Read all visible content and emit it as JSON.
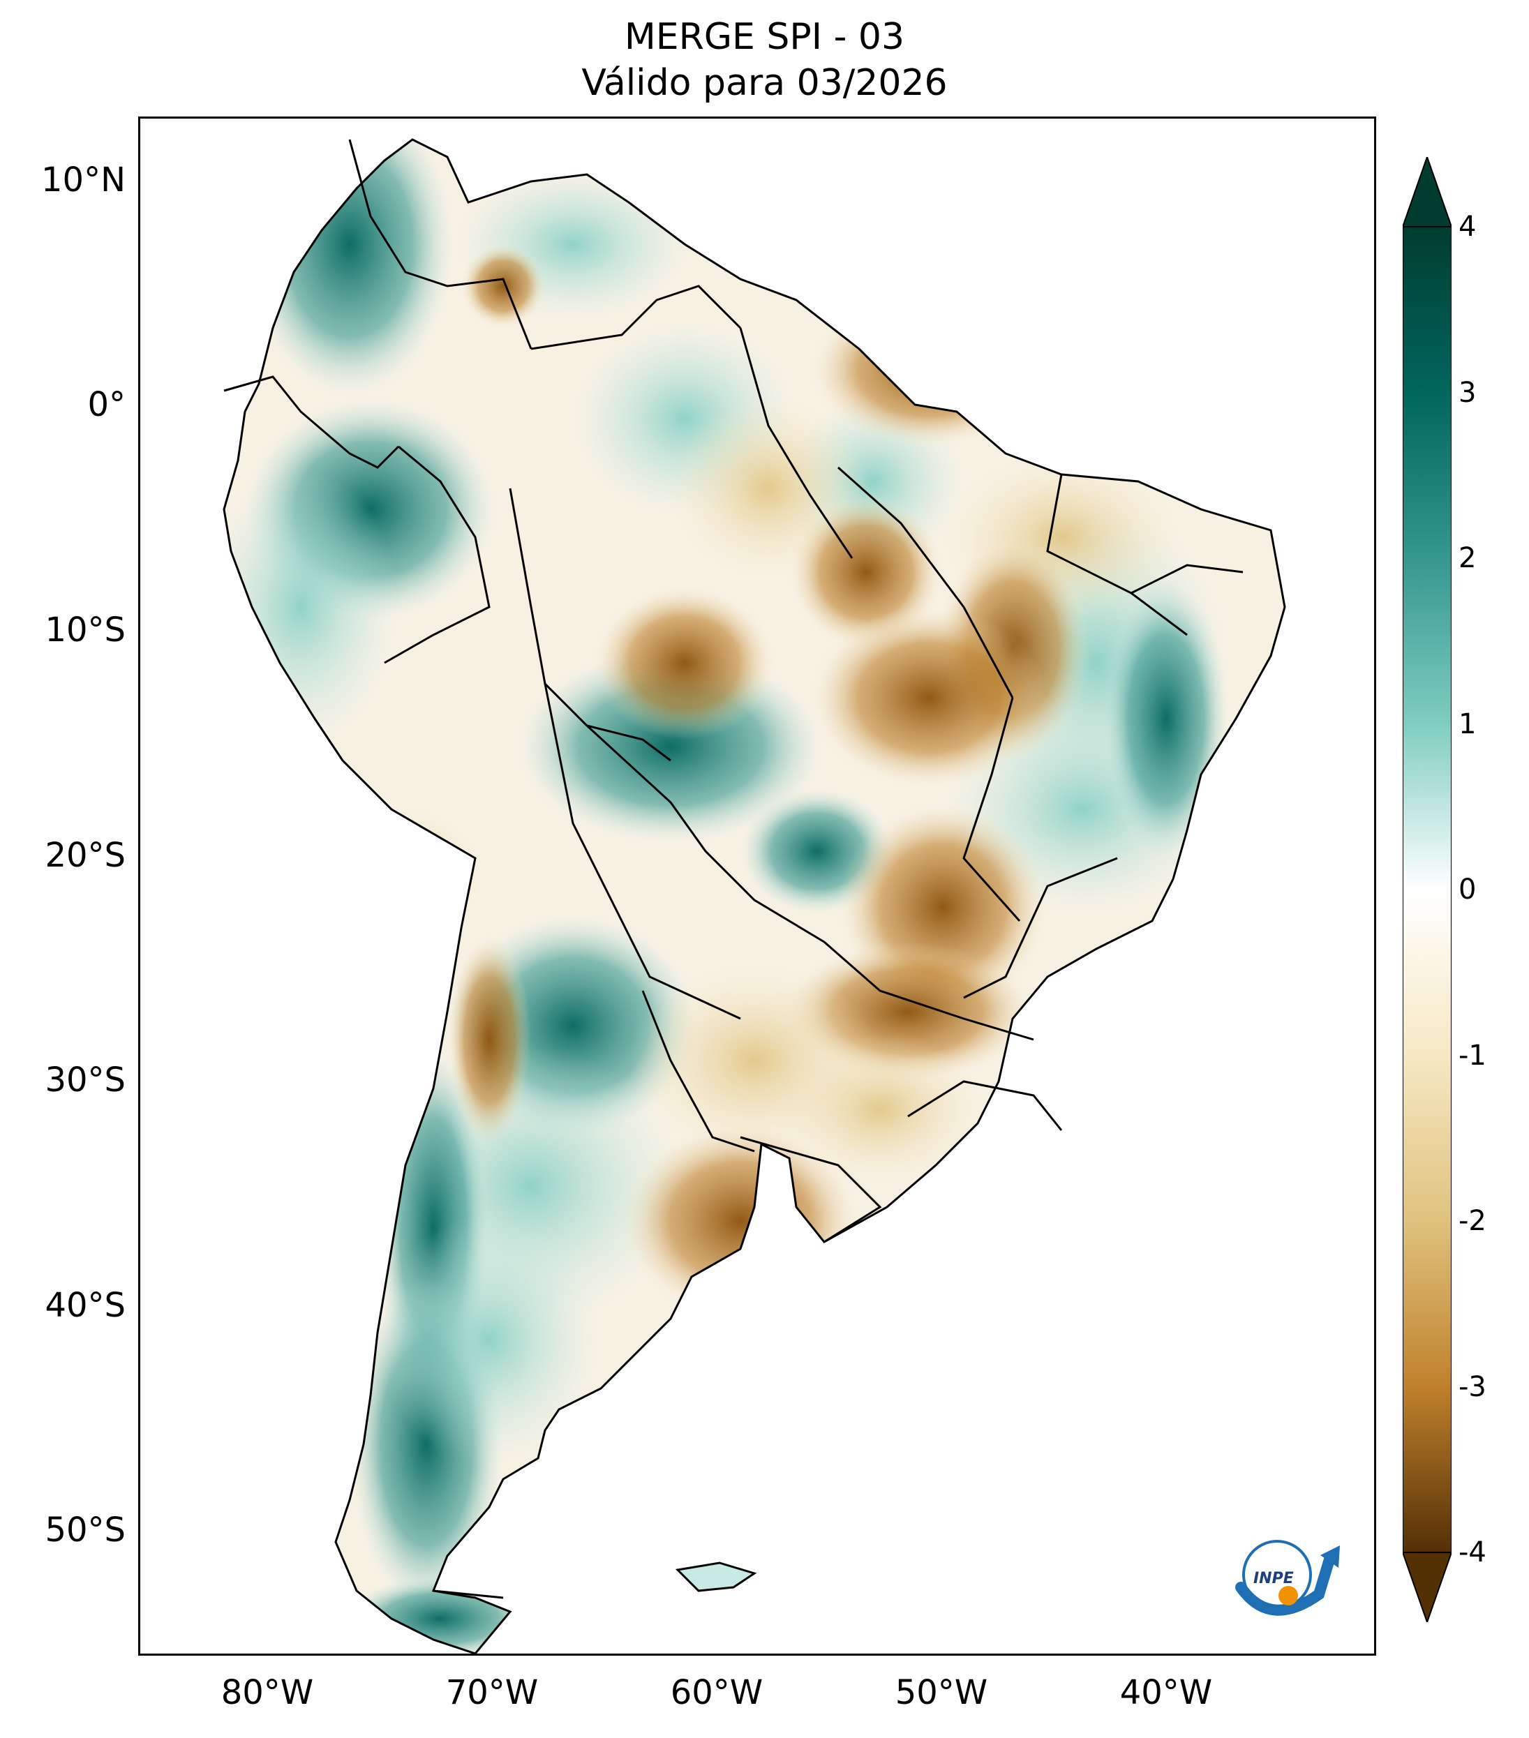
{
  "title": {
    "line1": "MERGE   SPI - 03",
    "line2": "Válido para 03/2026"
  },
  "map": {
    "lat_ticks": [
      "10°N",
      "0°",
      "10°S",
      "20°S",
      "30°S",
      "40°S",
      "50°S"
    ],
    "lon_ticks": [
      "80°W",
      "70°W",
      "60°W",
      "50°W",
      "40°W"
    ]
  },
  "colorbar": {
    "ticks": [
      "4",
      "3",
      "2",
      "1",
      "0",
      "-1",
      "-2",
      "-3",
      "-4"
    ],
    "extend": "both",
    "colormap": "BrBG",
    "colors": {
      "wettest": "#003c30",
      "wet": "#35978f",
      "mild_wet": "#c7eae5",
      "neutral": "#ffffff",
      "mild_dry": "#f6e8c3",
      "dry": "#bf812d",
      "driest": "#543005"
    }
  },
  "logo": {
    "text": "INPE"
  }
}
